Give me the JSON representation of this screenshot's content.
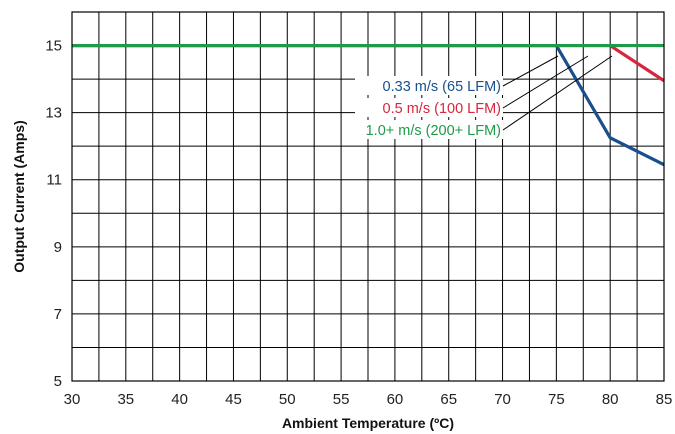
{
  "chart_data": {
    "type": "line",
    "xlabel": "Ambient Temperature (ºC)",
    "ylabel": "Output Current (Amps)",
    "xlim": [
      30,
      85
    ],
    "ylim": [
      5,
      16
    ],
    "x_ticks": [
      30,
      35,
      40,
      45,
      50,
      55,
      60,
      65,
      70,
      75,
      80,
      85
    ],
    "y_ticks": [
      5,
      7,
      9,
      11,
      13,
      15
    ],
    "grid": true,
    "series": [
      {
        "name": "0.33 m/s (65 LFM)",
        "color": "#1a4f8b",
        "x": [
          30,
          75,
          80,
          85
        ],
        "y": [
          15,
          15,
          12.25,
          11.45
        ]
      },
      {
        "name": "0.5 m/s (100 LFM)",
        "color": "#d7263d",
        "x": [
          30,
          80,
          85
        ],
        "y": [
          15,
          15,
          13.95
        ]
      },
      {
        "name": "1.0+ m/s (200+ LFM)",
        "color": "#1e9a48",
        "x": [
          30,
          85
        ],
        "y": [
          15,
          15
        ]
      }
    ]
  }
}
